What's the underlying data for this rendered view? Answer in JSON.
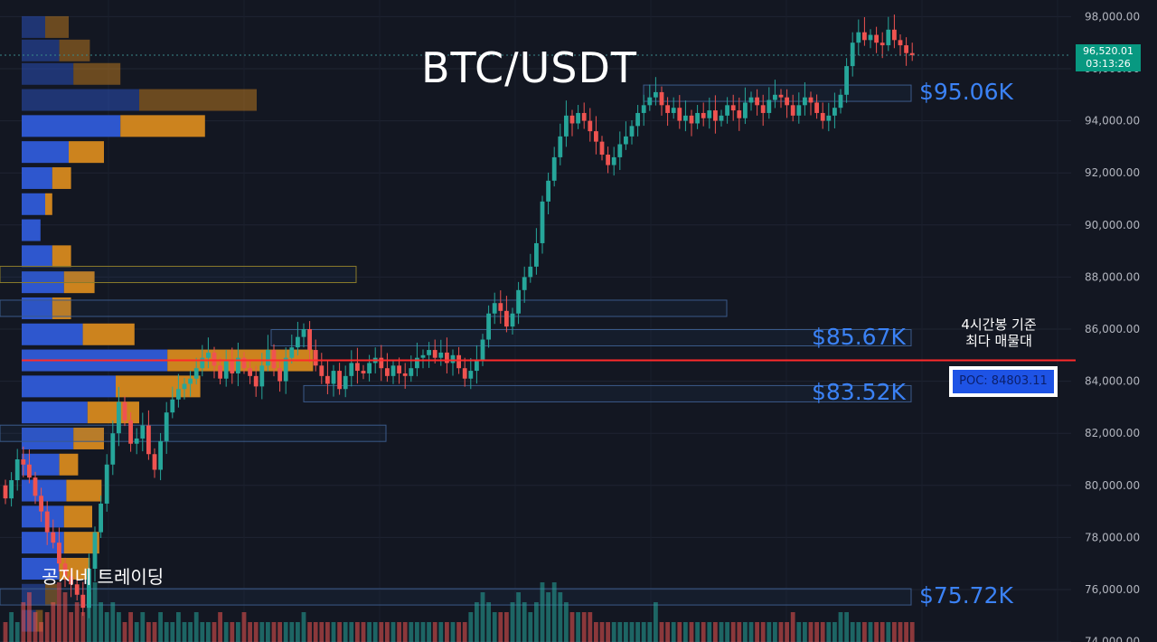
{
  "chart_data": {
    "type": "candlestick",
    "title": "BTC/USDT",
    "ylim": [
      73500,
      98500
    ],
    "y_ticks": [
      "98,000.00",
      "96,000.00",
      "94,000.00",
      "92,000.00",
      "90,000.00",
      "88,000.00",
      "86,000.00",
      "84,000.00",
      "82,000.00",
      "80,000.00",
      "78,000.00",
      "76,000.00",
      "74,000.00"
    ],
    "y_tick_values": [
      98000,
      96000,
      94000,
      92000,
      90000,
      88000,
      86000,
      84000,
      82000,
      80000,
      78000,
      76000,
      74000
    ],
    "current_price": "96,520.01",
    "countdown": "03:13:26",
    "current_price_value": 96520,
    "poc_value": 84803,
    "poc_label": "POC: 84803.11",
    "poc_note": [
      "4시간봉 기준",
      "최다 매물대"
    ],
    "levels": [
      {
        "label": "$95.06K",
        "value": 95060
      },
      {
        "label": "$85.67K",
        "value": 85670
      },
      {
        "label": "$83.52K",
        "value": 83520
      },
      {
        "label": "$75.72K",
        "value": 75720
      }
    ],
    "volume_profile": [
      {
        "price": 97600,
        "buy": 1.0,
        "sell": 1.0
      },
      {
        "price": 96700,
        "buy": 1.6,
        "sell": 1.3
      },
      {
        "price": 95800,
        "buy": 2.2,
        "sell": 2.0
      },
      {
        "price": 94800,
        "buy": 5.0,
        "sell": 5.0
      },
      {
        "price": 93800,
        "buy": 4.2,
        "sell": 3.6
      },
      {
        "price": 92800,
        "buy": 2.0,
        "sell": 1.5
      },
      {
        "price": 91800,
        "buy": 1.3,
        "sell": 0.8
      },
      {
        "price": 90800,
        "buy": 1.0,
        "sell": 0.3
      },
      {
        "price": 89800,
        "buy": 0.8,
        "sell": 0.0
      },
      {
        "price": 88800,
        "buy": 1.3,
        "sell": 0.8
      },
      {
        "price": 87800,
        "buy": 1.8,
        "sell": 1.3
      },
      {
        "price": 86800,
        "buy": 1.3,
        "sell": 0.8
      },
      {
        "price": 85800,
        "buy": 2.6,
        "sell": 2.2
      },
      {
        "price": 84800,
        "buy": 6.2,
        "sell": 6.2
      },
      {
        "price": 83800,
        "buy": 4.0,
        "sell": 3.6
      },
      {
        "price": 82800,
        "buy": 2.8,
        "sell": 2.2
      },
      {
        "price": 81800,
        "buy": 2.2,
        "sell": 1.3
      },
      {
        "price": 80800,
        "buy": 1.6,
        "sell": 0.8
      },
      {
        "price": 79800,
        "buy": 1.9,
        "sell": 1.5
      },
      {
        "price": 78800,
        "buy": 1.8,
        "sell": 1.2
      },
      {
        "price": 77800,
        "buy": 1.8,
        "sell": 1.5
      },
      {
        "price": 76800,
        "buy": 1.6,
        "sell": 1.3
      },
      {
        "price": 75800,
        "buy": 1.0,
        "sell": 0.5
      },
      {
        "price": 74800,
        "buy": 0.6,
        "sell": 0.3
      }
    ],
    "closes": [
      79500,
      80200,
      81000,
      80800,
      80300,
      79600,
      79000,
      78200,
      77800,
      77000,
      76500,
      76200,
      75800,
      75300,
      76800,
      78200,
      79300,
      80800,
      82000,
      83200,
      82500,
      81600,
      81800,
      82300,
      81200,
      80600,
      81700,
      82800,
      83300,
      83700,
      83900,
      84100,
      84500,
      84900,
      85100,
      84600,
      84100,
      84800,
      84300,
      84900,
      84500,
      84200,
      83800,
      84600,
      85200,
      84500,
      84000,
      84900,
      85300,
      85700,
      86000,
      85200,
      84600,
      84200,
      83900,
      84400,
      83700,
      84200,
      84700,
      84400,
      84300,
      84700,
      84900,
      84500,
      84200,
      84600,
      84300,
      84200,
      84500,
      84900,
      85000,
      85200,
      84900,
      85100,
      84700,
      85000,
      84500,
      84100,
      84400,
      84800,
      85600,
      86600,
      87000,
      86700,
      86100,
      86600,
      87500,
      88000,
      88400,
      89300,
      90900,
      91700,
      92600,
      93400,
      94200,
      93900,
      94300,
      94000,
      93600,
      93200,
      92700,
      92300,
      92600,
      93100,
      93400,
      93800,
      94300,
      94600,
      94900,
      95100,
      94600,
      94300,
      94500,
      94000,
      94200,
      93900,
      94300,
      94100,
      94400,
      94000,
      94200,
      94600,
      94400,
      94100,
      94700,
      94900,
      94600,
      94300,
      94800,
      95000,
      94900,
      94600,
      94200,
      94600,
      94900,
      94700,
      94300,
      94000,
      94200,
      94500,
      95000,
      96100,
      97000,
      97400,
      97100,
      97300,
      97000,
      96900,
      97500,
      97100,
      96900,
      96600,
      96520
    ],
    "volumes": [
      2,
      3,
      2,
      4,
      5,
      3,
      2,
      3,
      4,
      6,
      5,
      3,
      4,
      3,
      5,
      6,
      4,
      3,
      4,
      3,
      2,
      3,
      2,
      3,
      2,
      2,
      3,
      2,
      2,
      3,
      2,
      2,
      3,
      2,
      2,
      2,
      3,
      2,
      2,
      2,
      3,
      2,
      2,
      2,
      2,
      2,
      2,
      2,
      2,
      2,
      3,
      2,
      2,
      2,
      2,
      2,
      2,
      2,
      2,
      2,
      2,
      2,
      2,
      2,
      2,
      2,
      2,
      2,
      2,
      2,
      2,
      2,
      2,
      2,
      2,
      2,
      2,
      2,
      3,
      4,
      5,
      4,
      3,
      3,
      3,
      4,
      5,
      4,
      3,
      4,
      6,
      5,
      6,
      5,
      4,
      3,
      3,
      3,
      3,
      2,
      2,
      2,
      2,
      2,
      2,
      2,
      2,
      2,
      2,
      4,
      2,
      2,
      2,
      2,
      2,
      2,
      2,
      2,
      2,
      2,
      2,
      2,
      2,
      2,
      2,
      2,
      2,
      2,
      2,
      2,
      2,
      2,
      3,
      2,
      2,
      2,
      2,
      2,
      2,
      2,
      3,
      3,
      2,
      2,
      2,
      2,
      2,
      2,
      2,
      2,
      2,
      2,
      2
    ]
  },
  "title": "BTC/USDT",
  "watermark": "공지네 트레이딩",
  "colors": {
    "up": "#26a69a",
    "down": "#ef5350",
    "poc_line": "#ff2a2a",
    "profile_buy": "#2f5bd8",
    "profile_sell": "#d6891f",
    "level_text": "#3b82f6"
  }
}
